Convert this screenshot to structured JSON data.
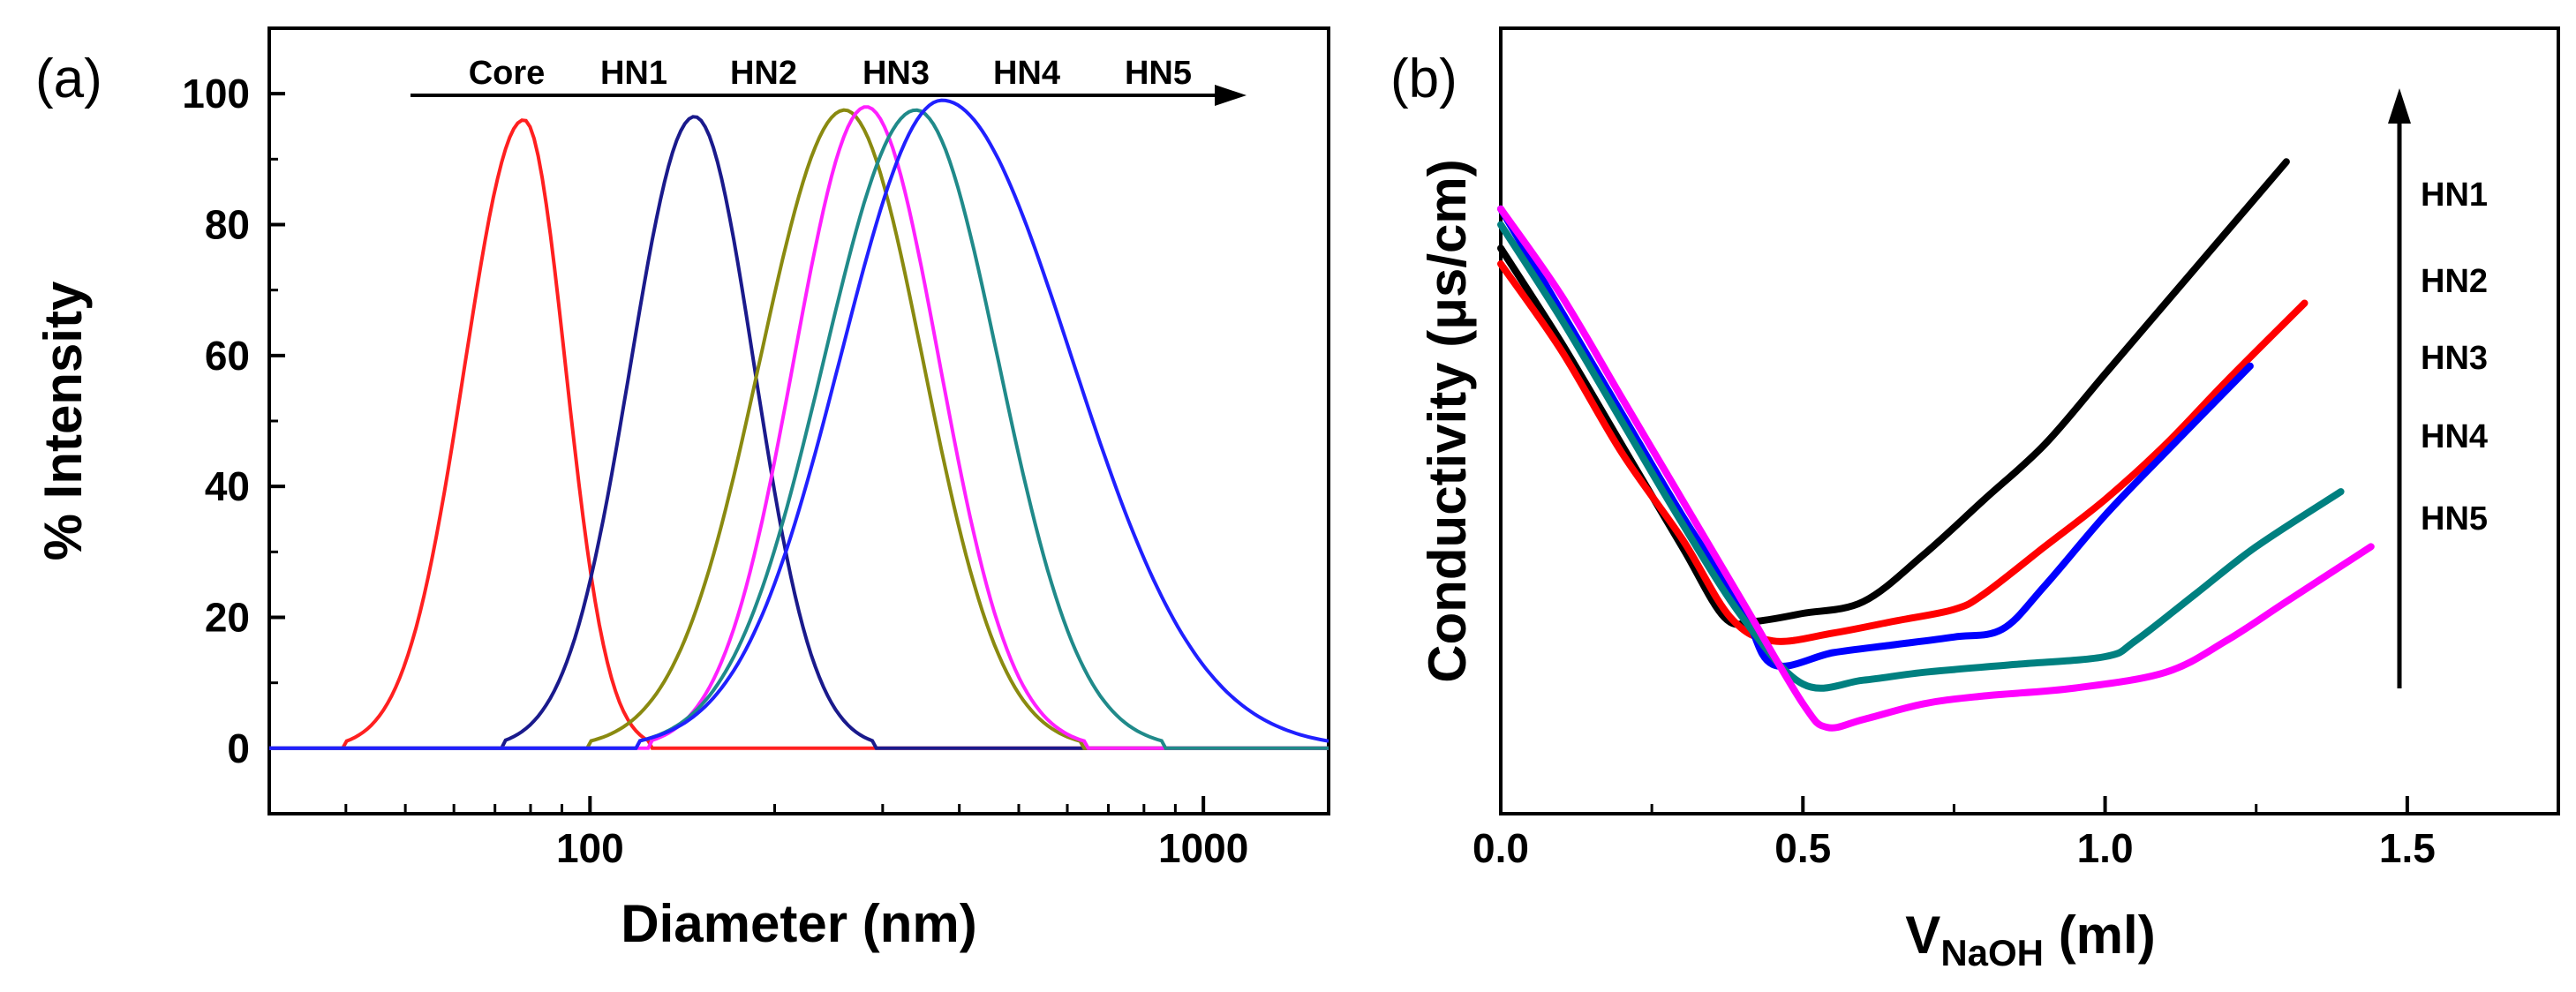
{
  "chart_data": [
    {
      "panel_label": "(a)",
      "type": "line",
      "xscale": "log",
      "xlabel": "Diameter (nm)",
      "ylabel": "% Intensity",
      "xlim": [
        30,
        1600
      ],
      "ylim": [
        -10,
        110
      ],
      "xticks": [
        {
          "value": 100,
          "label": "100"
        },
        {
          "value": 1000,
          "label": "1000"
        }
      ],
      "yticks": [
        0,
        20,
        40,
        60,
        80,
        100
      ],
      "arrow_labels": [
        "Core",
        "HN1",
        "HN2",
        "HN3",
        "HN4",
        "HN5"
      ],
      "series": [
        {
          "name": "Core",
          "color": "#ff2020",
          "peak_x": 78,
          "peak_y": 96,
          "left_zero_x": 40,
          "right_zero_x": 125
        },
        {
          "name": "HN1",
          "color": "#1a1a8c",
          "peak_x": 148,
          "peak_y": 96.5,
          "left_zero_x": 72,
          "right_zero_x": 290
        },
        {
          "name": "HN2",
          "color": "#8a8a10",
          "peak_x": 260,
          "peak_y": 97.5,
          "left_zero_x": 100,
          "right_zero_x": 630
        },
        {
          "name": "HN3",
          "color": "#ff20ff",
          "peak_x": 282,
          "peak_y": 98,
          "left_zero_x": 125,
          "right_zero_x": 640
        },
        {
          "name": "HN4",
          "color": "#208a8a",
          "peak_x": 340,
          "peak_y": 97.5,
          "left_zero_x": 120,
          "right_zero_x": 860
        },
        {
          "name": "HN5",
          "color": "#2020ff",
          "peak_x": 375,
          "peak_y": 99,
          "left_zero_x": 120,
          "right_zero_x": 1600
        }
      ]
    },
    {
      "panel_label": "(b)",
      "type": "line",
      "xlabel_main": "V",
      "xlabel_sub": "NaOH",
      "xlabel_unit": " (ml)",
      "ylabel": "Conductivity (μs/cm)",
      "xlim": [
        0,
        1.75
      ],
      "ylim": [
        0,
        1
      ],
      "xticks": [
        0.0,
        0.5,
        1.0,
        1.5
      ],
      "xtick_labels": [
        "0.0",
        "0.5",
        "1.0",
        "1.5"
      ],
      "yticks_shown": false,
      "arrow_labels": [
        "HN1",
        "HN2",
        "HN3",
        "HN4",
        "HN5"
      ],
      "series": [
        {
          "name": "HN1",
          "color": "#000000",
          "points": [
            [
              0,
              0.72
            ],
            [
              0.1,
              0.6
            ],
            [
              0.2,
              0.47
            ],
            [
              0.3,
              0.34
            ],
            [
              0.37,
              0.25
            ],
            [
              0.42,
              0.245
            ],
            [
              0.5,
              0.255
            ],
            [
              0.6,
              0.27
            ],
            [
              0.7,
              0.33
            ],
            [
              0.8,
              0.4
            ],
            [
              0.9,
              0.47
            ],
            [
              1.0,
              0.56
            ],
            [
              1.1,
              0.65
            ],
            [
              1.2,
              0.74
            ],
            [
              1.3,
              0.83
            ]
          ]
        },
        {
          "name": "HN2",
          "color": "#ff0000",
          "points": [
            [
              0,
              0.7
            ],
            [
              0.1,
              0.59
            ],
            [
              0.2,
              0.46
            ],
            [
              0.3,
              0.35
            ],
            [
              0.38,
              0.25
            ],
            [
              0.45,
              0.22
            ],
            [
              0.55,
              0.23
            ],
            [
              0.65,
              0.245
            ],
            [
              0.75,
              0.26
            ],
            [
              0.8,
              0.28
            ],
            [
              0.9,
              0.34
            ],
            [
              1.0,
              0.4
            ],
            [
              1.1,
              0.47
            ],
            [
              1.2,
              0.55
            ],
            [
              1.33,
              0.65
            ]
          ]
        },
        {
          "name": "HN3",
          "color": "#0000ff",
          "points": [
            [
              0,
              0.77
            ],
            [
              0.1,
              0.64
            ],
            [
              0.2,
              0.51
            ],
            [
              0.3,
              0.38
            ],
            [
              0.4,
              0.26
            ],
            [
              0.45,
              0.19
            ],
            [
              0.55,
              0.205
            ],
            [
              0.65,
              0.215
            ],
            [
              0.75,
              0.225
            ],
            [
              0.83,
              0.235
            ],
            [
              0.9,
              0.29
            ],
            [
              1.0,
              0.38
            ],
            [
              1.1,
              0.46
            ],
            [
              1.24,
              0.57
            ]
          ]
        },
        {
          "name": "HN4",
          "color": "#008080",
          "points": [
            [
              0,
              0.75
            ],
            [
              0.1,
              0.63
            ],
            [
              0.2,
              0.5
            ],
            [
              0.3,
              0.37
            ],
            [
              0.4,
              0.25
            ],
            [
              0.5,
              0.165
            ],
            [
              0.6,
              0.17
            ],
            [
              0.7,
              0.18
            ],
            [
              0.85,
              0.19
            ],
            [
              1.0,
              0.2
            ],
            [
              1.05,
              0.22
            ],
            [
              1.15,
              0.28
            ],
            [
              1.25,
              0.34
            ],
            [
              1.39,
              0.41
            ]
          ]
        },
        {
          "name": "HN5",
          "color": "#ff00ff",
          "points": [
            [
              0,
              0.77
            ],
            [
              0.1,
              0.66
            ],
            [
              0.2,
              0.53
            ],
            [
              0.3,
              0.4
            ],
            [
              0.4,
              0.27
            ],
            [
              0.5,
              0.14
            ],
            [
              0.54,
              0.11
            ],
            [
              0.6,
              0.12
            ],
            [
              0.7,
              0.14
            ],
            [
              0.8,
              0.15
            ],
            [
              0.95,
              0.16
            ],
            [
              1.1,
              0.18
            ],
            [
              1.2,
              0.22
            ],
            [
              1.3,
              0.27
            ],
            [
              1.44,
              0.34
            ]
          ]
        }
      ]
    }
  ]
}
